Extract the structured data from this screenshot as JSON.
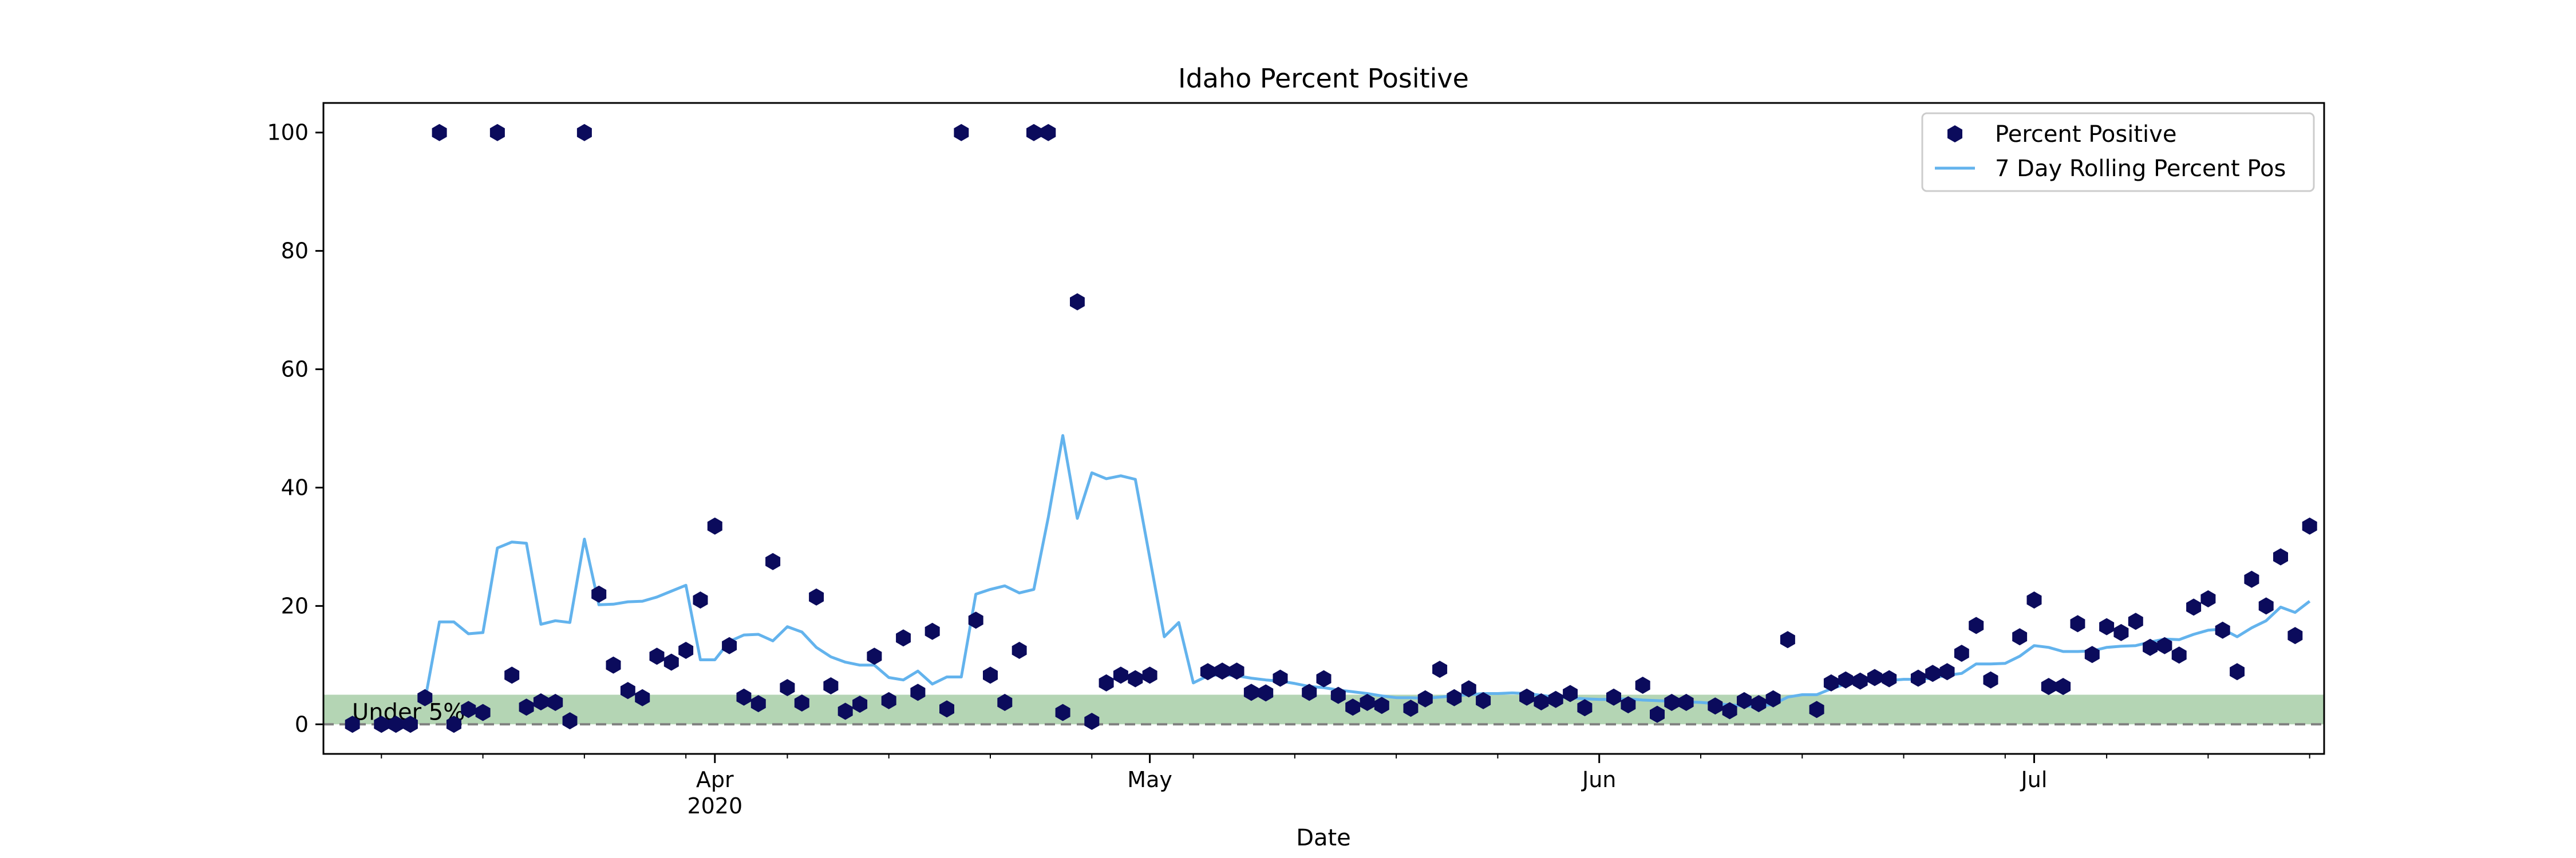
{
  "chart_data": {
    "type": "scatter",
    "title": "Idaho Percent Positive",
    "xlabel": "Date",
    "ylabel": "",
    "xlim": [
      "2020-03-05",
      "2020-07-21"
    ],
    "ylim": [
      -5,
      105
    ],
    "y_ticks": [
      0,
      20,
      40,
      60,
      80,
      100
    ],
    "x_ticks": [
      {
        "date": "2020-04-01",
        "label": "Apr",
        "sublabel": "2020"
      },
      {
        "date": "2020-05-01",
        "label": "May",
        "sublabel": ""
      },
      {
        "date": "2020-06-01",
        "label": "Jun",
        "sublabel": ""
      },
      {
        "date": "2020-07-01",
        "label": "Jul",
        "sublabel": ""
      }
    ],
    "grid": false,
    "legend_position": "top-right",
    "threshold": {
      "value": 5,
      "label": "Under 5%",
      "color": "#008000",
      "reference_line": 0
    },
    "series": [
      {
        "name": "Percent Positive",
        "kind": "scatter",
        "marker": "hexagon",
        "color": "#0b0b5c",
        "points": [
          [
            "2020-03-07",
            0
          ],
          [
            "2020-03-09",
            0
          ],
          [
            "2020-03-10",
            0
          ],
          [
            "2020-03-11",
            0
          ],
          [
            "2020-03-12",
            4.5
          ],
          [
            "2020-03-13",
            100
          ],
          [
            "2020-03-14",
            0
          ],
          [
            "2020-03-15",
            2.5
          ],
          [
            "2020-03-16",
            2
          ],
          [
            "2020-03-17",
            100
          ],
          [
            "2020-03-18",
            8.3
          ],
          [
            "2020-03-19",
            2.9
          ],
          [
            "2020-03-20",
            3.8
          ],
          [
            "2020-03-21",
            3.7
          ],
          [
            "2020-03-22",
            0.6
          ],
          [
            "2020-03-23",
            100
          ],
          [
            "2020-03-24",
            22
          ],
          [
            "2020-03-25",
            10
          ],
          [
            "2020-03-26",
            5.7
          ],
          [
            "2020-03-27",
            4.5
          ],
          [
            "2020-03-28",
            11.5
          ],
          [
            "2020-03-29",
            10.5
          ],
          [
            "2020-03-30",
            12.5
          ],
          [
            "2020-03-31",
            21
          ],
          [
            "2020-04-01",
            33.5
          ],
          [
            "2020-04-02",
            13.3
          ],
          [
            "2020-04-03",
            4.6
          ],
          [
            "2020-04-04",
            3.5
          ],
          [
            "2020-04-05",
            27.5
          ],
          [
            "2020-04-06",
            6.2
          ],
          [
            "2020-04-07",
            3.6
          ],
          [
            "2020-04-08",
            21.5
          ],
          [
            "2020-04-09",
            6.5
          ],
          [
            "2020-04-10",
            2.2
          ],
          [
            "2020-04-11",
            3.4
          ],
          [
            "2020-04-12",
            11.5
          ],
          [
            "2020-04-13",
            4
          ],
          [
            "2020-04-14",
            14.6
          ],
          [
            "2020-04-15",
            5.4
          ],
          [
            "2020-04-16",
            15.7
          ],
          [
            "2020-04-17",
            2.6
          ],
          [
            "2020-04-18",
            100
          ],
          [
            "2020-04-19",
            17.6
          ],
          [
            "2020-04-20",
            8.3
          ],
          [
            "2020-04-21",
            3.7
          ],
          [
            "2020-04-22",
            12.5
          ],
          [
            "2020-04-23",
            100
          ],
          [
            "2020-04-24",
            100
          ],
          [
            "2020-04-25",
            2
          ],
          [
            "2020-04-26",
            71.4
          ],
          [
            "2020-04-27",
            0.5
          ],
          [
            "2020-04-28",
            7
          ],
          [
            "2020-04-29",
            8.3
          ],
          [
            "2020-04-30",
            7.7
          ],
          [
            "2020-05-01",
            8.3
          ],
          [
            "2020-05-05",
            8.9
          ],
          [
            "2020-05-06",
            9
          ],
          [
            "2020-05-07",
            9
          ],
          [
            "2020-05-08",
            5.4
          ],
          [
            "2020-05-09",
            5.3
          ],
          [
            "2020-05-10",
            7.8
          ],
          [
            "2020-05-12",
            5.4
          ],
          [
            "2020-05-13",
            7.7
          ],
          [
            "2020-05-14",
            4.9
          ],
          [
            "2020-05-15",
            2.9
          ],
          [
            "2020-05-16",
            3.7
          ],
          [
            "2020-05-17",
            3.2
          ],
          [
            "2020-05-19",
            2.7
          ],
          [
            "2020-05-20",
            4.3
          ],
          [
            "2020-05-21",
            9.3
          ],
          [
            "2020-05-22",
            4.5
          ],
          [
            "2020-05-23",
            6
          ],
          [
            "2020-05-24",
            4
          ],
          [
            "2020-05-27",
            4.6
          ],
          [
            "2020-05-28",
            3.8
          ],
          [
            "2020-05-29",
            4.2
          ],
          [
            "2020-05-30",
            5.2
          ],
          [
            "2020-05-31",
            2.8
          ],
          [
            "2020-06-02",
            4.6
          ],
          [
            "2020-06-03",
            3.3
          ],
          [
            "2020-06-04",
            6.6
          ],
          [
            "2020-06-05",
            1.7
          ],
          [
            "2020-06-06",
            3.7
          ],
          [
            "2020-06-07",
            3.7
          ],
          [
            "2020-06-09",
            3.1
          ],
          [
            "2020-06-10",
            2.3
          ],
          [
            "2020-06-11",
            4
          ],
          [
            "2020-06-12",
            3.5
          ],
          [
            "2020-06-13",
            4.3
          ],
          [
            "2020-06-14",
            14.3
          ],
          [
            "2020-06-16",
            2.5
          ],
          [
            "2020-06-17",
            7
          ],
          [
            "2020-06-18",
            7.5
          ],
          [
            "2020-06-19",
            7.3
          ],
          [
            "2020-06-20",
            7.9
          ],
          [
            "2020-06-21",
            7.7
          ],
          [
            "2020-06-23",
            7.8
          ],
          [
            "2020-06-24",
            8.6
          ],
          [
            "2020-06-25",
            8.9
          ],
          [
            "2020-06-26",
            12
          ],
          [
            "2020-06-27",
            16.7
          ],
          [
            "2020-06-28",
            7.5
          ],
          [
            "2020-06-30",
            14.8
          ],
          [
            "2020-07-01",
            21
          ],
          [
            "2020-07-02",
            6.4
          ],
          [
            "2020-07-03",
            6.4
          ],
          [
            "2020-07-04",
            17
          ],
          [
            "2020-07-05",
            11.8
          ],
          [
            "2020-07-06",
            16.5
          ],
          [
            "2020-07-07",
            15.5
          ],
          [
            "2020-07-08",
            17.4
          ],
          [
            "2020-07-09",
            13
          ],
          [
            "2020-07-10",
            13.3
          ],
          [
            "2020-07-11",
            11.7
          ],
          [
            "2020-07-12",
            19.8
          ],
          [
            "2020-07-13",
            21.2
          ],
          [
            "2020-07-14",
            15.9
          ],
          [
            "2020-07-15",
            8.9
          ],
          [
            "2020-07-16",
            24.5
          ],
          [
            "2020-07-17",
            20
          ],
          [
            "2020-07-18",
            28.3
          ],
          [
            "2020-07-19",
            15
          ],
          [
            "2020-07-20",
            33.5
          ]
        ]
      },
      {
        "name": "7 Day Rolling Percent Pos",
        "kind": "line",
        "color": "#63b3ed",
        "points": [
          [
            "2020-03-12",
            4
          ],
          [
            "2020-03-13",
            17.3
          ],
          [
            "2020-03-14",
            17.3
          ],
          [
            "2020-03-15",
            15.3
          ],
          [
            "2020-03-16",
            15.5
          ],
          [
            "2020-03-17",
            29.8
          ],
          [
            "2020-03-18",
            30.8
          ],
          [
            "2020-03-19",
            30.6
          ],
          [
            "2020-03-20",
            16.9
          ],
          [
            "2020-03-21",
            17.5
          ],
          [
            "2020-03-22",
            17.2
          ],
          [
            "2020-03-23",
            31.3
          ],
          [
            "2020-03-24",
            20.2
          ],
          [
            "2020-03-25",
            20.3
          ],
          [
            "2020-03-26",
            20.7
          ],
          [
            "2020-03-27",
            20.8
          ],
          [
            "2020-03-28",
            21.5
          ],
          [
            "2020-03-29",
            22.5
          ],
          [
            "2020-03-30",
            23.5
          ],
          [
            "2020-03-31",
            10.9
          ],
          [
            "2020-04-01",
            10.9
          ],
          [
            "2020-04-02",
            14
          ],
          [
            "2020-04-03",
            15.1
          ],
          [
            "2020-04-04",
            15.2
          ],
          [
            "2020-04-05",
            14.1
          ],
          [
            "2020-04-06",
            16.5
          ],
          [
            "2020-04-07",
            15.6
          ],
          [
            "2020-04-08",
            13
          ],
          [
            "2020-04-09",
            11.4
          ],
          [
            "2020-04-10",
            10.5
          ],
          [
            "2020-04-11",
            10
          ],
          [
            "2020-04-12",
            10
          ],
          [
            "2020-04-13",
            7.9
          ],
          [
            "2020-04-14",
            7.5
          ],
          [
            "2020-04-15",
            9
          ],
          [
            "2020-04-16",
            6.8
          ],
          [
            "2020-04-17",
            8
          ],
          [
            "2020-04-18",
            8
          ],
          [
            "2020-04-19",
            22
          ],
          [
            "2020-04-20",
            22.8
          ],
          [
            "2020-04-21",
            23.4
          ],
          [
            "2020-04-22",
            22.2
          ],
          [
            "2020-04-23",
            22.8
          ],
          [
            "2020-04-24",
            35
          ],
          [
            "2020-04-25",
            48.8
          ],
          [
            "2020-04-26",
            34.8
          ],
          [
            "2020-04-27",
            42.5
          ],
          [
            "2020-04-28",
            41.5
          ],
          [
            "2020-04-29",
            42
          ],
          [
            "2020-04-30",
            41.4
          ],
          [
            "2020-05-01",
            28.1
          ],
          [
            "2020-05-02",
            14.8
          ],
          [
            "2020-05-03",
            17.2
          ],
          [
            "2020-05-04",
            7
          ],
          [
            "2020-05-05",
            8.2
          ],
          [
            "2020-05-06",
            8.4
          ],
          [
            "2020-05-07",
            8.2
          ],
          [
            "2020-05-08",
            7.8
          ],
          [
            "2020-05-09",
            7.5
          ],
          [
            "2020-05-10",
            7.3
          ],
          [
            "2020-05-11",
            6.9
          ],
          [
            "2020-05-12",
            6.4
          ],
          [
            "2020-05-13",
            6.2
          ],
          [
            "2020-05-14",
            5.8
          ],
          [
            "2020-05-15",
            5.5
          ],
          [
            "2020-05-16",
            5.2
          ],
          [
            "2020-05-17",
            4.8
          ],
          [
            "2020-05-18",
            4.5
          ],
          [
            "2020-05-19",
            4.5
          ],
          [
            "2020-05-20",
            4.4
          ],
          [
            "2020-05-21",
            4.6
          ],
          [
            "2020-05-22",
            4.8
          ],
          [
            "2020-05-23",
            5
          ],
          [
            "2020-05-24",
            5.2
          ],
          [
            "2020-05-25",
            5.2
          ],
          [
            "2020-05-26",
            5.3
          ],
          [
            "2020-05-27",
            5.2
          ],
          [
            "2020-05-28",
            4.9
          ],
          [
            "2020-05-29",
            4.6
          ],
          [
            "2020-05-30",
            4.5
          ],
          [
            "2020-05-31",
            4.3
          ],
          [
            "2020-06-01",
            4.2
          ],
          [
            "2020-06-02",
            4.2
          ],
          [
            "2020-06-03",
            4.3
          ],
          [
            "2020-06-04",
            4.1
          ],
          [
            "2020-06-05",
            4
          ],
          [
            "2020-06-06",
            3.9
          ],
          [
            "2020-06-07",
            3.8
          ],
          [
            "2020-06-08",
            3.7
          ],
          [
            "2020-06-09",
            3.5
          ],
          [
            "2020-06-10",
            3.3
          ],
          [
            "2020-06-11",
            3.1
          ],
          [
            "2020-06-12",
            3
          ],
          [
            "2020-06-13",
            3.4
          ],
          [
            "2020-06-14",
            4.6
          ],
          [
            "2020-06-15",
            5
          ],
          [
            "2020-06-16",
            5
          ],
          [
            "2020-06-17",
            6
          ],
          [
            "2020-06-18",
            6.8
          ],
          [
            "2020-06-19",
            7.2
          ],
          [
            "2020-06-20",
            7.4
          ],
          [
            "2020-06-21",
            7.4
          ],
          [
            "2020-06-22",
            7.6
          ],
          [
            "2020-06-23",
            7.6
          ],
          [
            "2020-06-24",
            7.8
          ],
          [
            "2020-06-25",
            8.3
          ],
          [
            "2020-06-26",
            8.6
          ],
          [
            "2020-06-27",
            10.2
          ],
          [
            "2020-06-28",
            10.2
          ],
          [
            "2020-06-29",
            10.3
          ],
          [
            "2020-06-30",
            11.5
          ],
          [
            "2020-07-01",
            13.3
          ],
          [
            "2020-07-02",
            13
          ],
          [
            "2020-07-03",
            12.3
          ],
          [
            "2020-07-04",
            12.3
          ],
          [
            "2020-07-05",
            12.4
          ],
          [
            "2020-07-06",
            13
          ],
          [
            "2020-07-07",
            13.2
          ],
          [
            "2020-07-08",
            13.3
          ],
          [
            "2020-07-09",
            13.9
          ],
          [
            "2020-07-10",
            14.4
          ],
          [
            "2020-07-11",
            14.3
          ],
          [
            "2020-07-12",
            15.2
          ],
          [
            "2020-07-13",
            15.9
          ],
          [
            "2020-07-14",
            16.1
          ],
          [
            "2020-07-15",
            14.8
          ],
          [
            "2020-07-16",
            16.3
          ],
          [
            "2020-07-17",
            17.5
          ],
          [
            "2020-07-18",
            19.8
          ],
          [
            "2020-07-19",
            18.9
          ],
          [
            "2020-07-20",
            20.8
          ]
        ]
      }
    ]
  }
}
